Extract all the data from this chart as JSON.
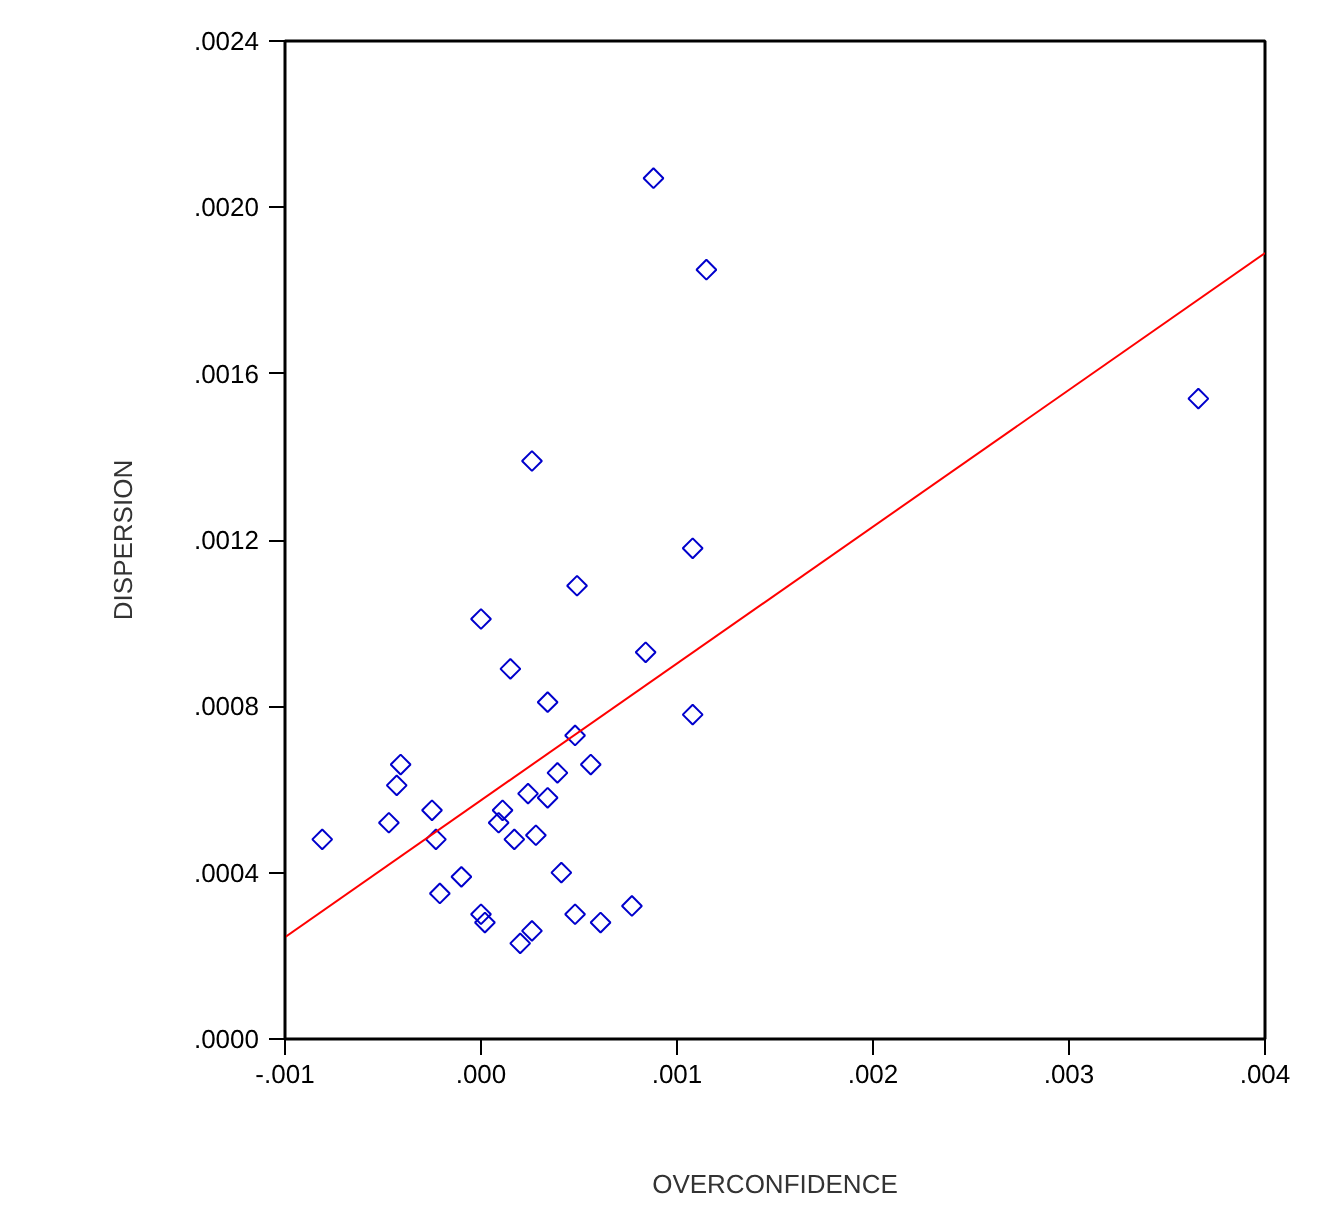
{
  "chart_data": {
    "type": "scatter",
    "xlabel": "OVERCONFIDENCE",
    "ylabel": "DISPERSION",
    "xlim": [
      -0.001,
      0.004
    ],
    "ylim": [
      0,
      0.0024
    ],
    "xticks": [
      {
        "value": -0.001,
        "label": "-.001"
      },
      {
        "value": 0,
        "label": ".000"
      },
      {
        "value": 0.001,
        "label": ".001"
      },
      {
        "value": 0.002,
        "label": ".002"
      },
      {
        "value": 0.003,
        "label": ".003"
      },
      {
        "value": 0.004,
        "label": ".004"
      }
    ],
    "yticks": [
      {
        "value": 0,
        "label": ".0000"
      },
      {
        "value": 0.0004,
        "label": ".0004"
      },
      {
        "value": 0.0008,
        "label": ".0008"
      },
      {
        "value": 0.0012,
        "label": ".0012"
      },
      {
        "value": 0.0016,
        "label": ".0016"
      },
      {
        "value": 0.002,
        "label": ".0020"
      },
      {
        "value": 0.0024,
        "label": ".0024"
      }
    ],
    "series": [
      {
        "marker": "diamond",
        "color": "#0000cc",
        "x": [
          0.00088,
          0.00115,
          0.00366,
          0.00026,
          0.00108,
          0.00049,
          0.0,
          0.00084,
          0.00015,
          0.00108,
          0.00034,
          0.00048,
          -0.00041,
          0.00056,
          -0.00043,
          0.00039,
          0.00024,
          0.00034,
          -0.00025,
          0.00011,
          9e-05,
          -0.00047,
          -0.00081,
          -0.00023,
          0.00017,
          0.00028,
          -0.0001,
          0.00041,
          -0.00021,
          0.00077,
          0.0,
          2e-05,
          0.00048,
          0.00061,
          0.00026,
          0.0002
        ],
        "values": [
          0.00207,
          0.00185,
          0.00154,
          0.00139,
          0.00118,
          0.00109,
          0.00101,
          0.00093,
          0.00089,
          0.00078,
          0.00081,
          0.00073,
          0.00066,
          0.00066,
          0.00061,
          0.00064,
          0.00059,
          0.00058,
          0.00055,
          0.00055,
          0.00052,
          0.00052,
          0.00048,
          0.00048,
          0.00048,
          0.00049,
          0.00039,
          0.0004,
          0.00035,
          0.00032,
          0.0003,
          0.00028,
          0.0003,
          0.00028,
          0.00026,
          0.00023
        ]
      },
      {
        "type": "line",
        "marker": "none",
        "color": "#ff0000",
        "x": [
          -0.001,
          0.004
        ],
        "values": [
          0.000245,
          0.00189
        ]
      }
    ]
  }
}
